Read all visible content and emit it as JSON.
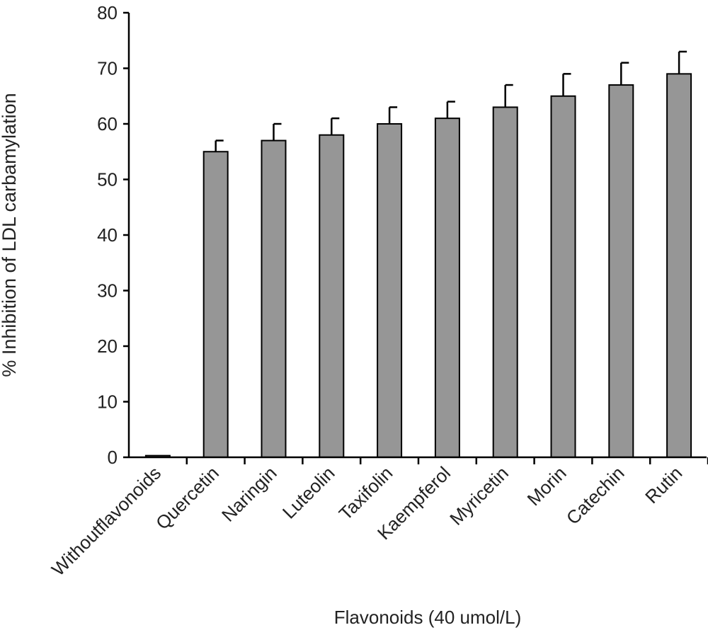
{
  "chart_data": {
    "type": "bar",
    "title": "",
    "xlabel": "Flavonoids (40 umol/L)",
    "ylabel": "% Inhibition of LDL carbamylation",
    "ylim": [
      0,
      80
    ],
    "yticks": [
      0,
      10,
      20,
      30,
      40,
      50,
      60,
      70,
      80
    ],
    "grid": false,
    "categories": [
      "Withoutflavonoids",
      "Quercetin",
      "Naringin",
      "Luteolin",
      "Taxifolin",
      "Kaempferol",
      "Myricetin",
      "Morin",
      "Catechin",
      "Rutin"
    ],
    "series": [
      {
        "values": [
          0.3,
          55,
          57,
          58,
          60,
          61,
          63,
          65,
          67,
          69
        ],
        "errors": [
          0,
          2,
          3,
          3,
          3,
          3,
          4,
          4,
          4,
          4
        ]
      }
    ],
    "colors": {
      "bar_fill": "#969696",
      "bar_stroke": "#000000",
      "axis": "#000000"
    }
  }
}
